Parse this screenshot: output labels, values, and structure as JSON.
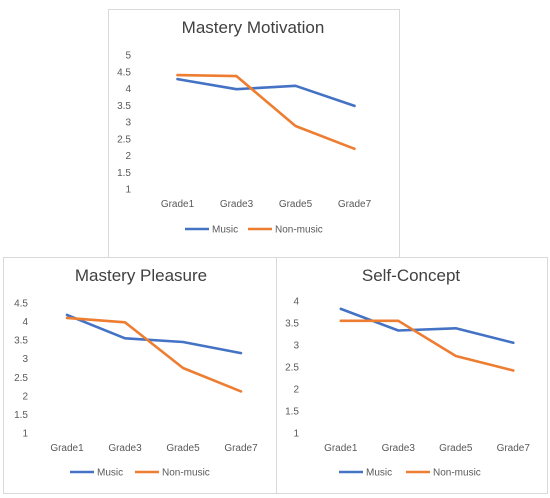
{
  "chart_data": [
    {
      "type": "line",
      "title": "Mastery Motivation",
      "categories": [
        "Grade1",
        "Grade3",
        "Grade5",
        "Grade7"
      ],
      "series": [
        {
          "name": "Music",
          "color": "#4472C4",
          "values": [
            4.28,
            3.98,
            4.08,
            3.48
          ]
        },
        {
          "name": "Non-music",
          "color": "#ED7D31",
          "values": [
            4.4,
            4.37,
            2.88,
            2.2
          ]
        }
      ],
      "ylim": [
        1,
        5
      ],
      "yticks": [
        "1",
        "1.5",
        "2",
        "2.5",
        "3",
        "3.5",
        "4",
        "4.5",
        "5"
      ],
      "grid": false,
      "legend": "bottom"
    },
    {
      "type": "line",
      "title": "Mastery Pleasure",
      "categories": [
        "Grade1",
        "Grade3",
        "Grade5",
        "Grade7"
      ],
      "series": [
        {
          "name": "Music",
          "color": "#4472C4",
          "values": [
            4.18,
            3.55,
            3.45,
            3.15
          ]
        },
        {
          "name": "Non-music",
          "color": "#ED7D31",
          "values": [
            4.1,
            3.98,
            2.75,
            2.12
          ]
        }
      ],
      "ylim": [
        1,
        4.5
      ],
      "yticks": [
        "1",
        "1.5",
        "2",
        "2.5",
        "3",
        "3.5",
        "4",
        "4.5"
      ],
      "grid": false,
      "legend": "bottom"
    },
    {
      "type": "line",
      "title": "Self-Concept",
      "categories": [
        "Grade1",
        "Grade3",
        "Grade5",
        "Grade7"
      ],
      "series": [
        {
          "name": "Music",
          "color": "#4472C4",
          "values": [
            3.82,
            3.33,
            3.38,
            3.05
          ]
        },
        {
          "name": "Non-music",
          "color": "#ED7D31",
          "values": [
            3.55,
            3.55,
            2.75,
            2.42
          ]
        }
      ],
      "ylim": [
        1,
        4
      ],
      "yticks": [
        "1",
        "1.5",
        "2",
        "2.5",
        "3",
        "3.5",
        "4"
      ],
      "grid": false,
      "legend": "bottom"
    }
  ]
}
